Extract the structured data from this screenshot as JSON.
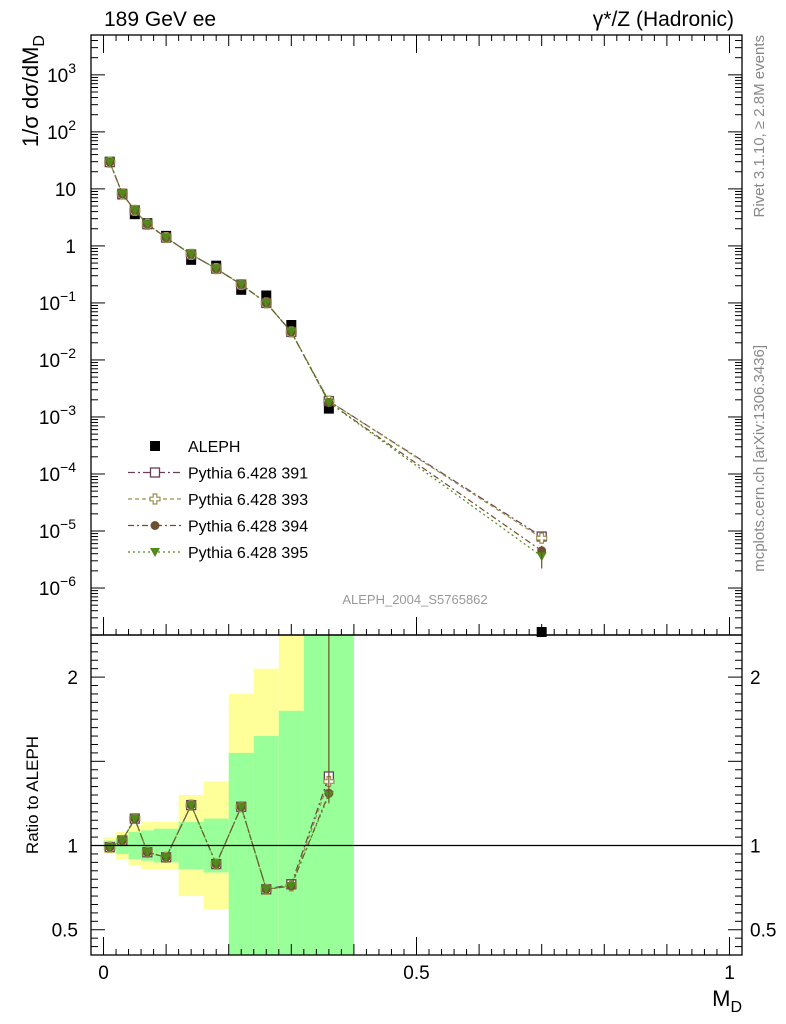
{
  "header": {
    "title_left": "189 GeV ee",
    "title_right": "γ*/Z (Hadronic)",
    "side_label_top": "Rivet 3.1.10, ≥ 2.8M events",
    "side_label_bottom": "mcplots.cern.ch [arXiv:1306.3436]",
    "analysis_id": "ALEPH_2004_S5765862"
  },
  "colors": {
    "data": "#000000",
    "p391": "#6b3f58",
    "p393": "#9a8f4a",
    "p394": "#6e5030",
    "p395": "#4f8a1a",
    "band_inner": "#99ff99",
    "band_outer": "#ffff99",
    "analysis_label": "#999999"
  },
  "chart_data": [
    {
      "type": "scatter",
      "panel": "main",
      "xlabel": "M_D",
      "ylabel": "1/σ  dσ/dM_D",
      "yscale": "log",
      "xlim": [
        -0.02,
        1.02
      ],
      "ylim": [
        1.5e-07,
        5000
      ],
      "y_ticks": [
        "10^-6",
        "10^-5",
        "10^-4",
        "10^-3",
        "10^-2",
        "10^-1",
        "1",
        "10",
        "10^2",
        "10^3"
      ],
      "legend_position": "lower-left",
      "x": [
        0.01,
        0.03,
        0.05,
        0.07,
        0.1,
        0.14,
        0.18,
        0.22,
        0.26,
        0.3,
        0.36,
        0.7
      ],
      "series": [
        {
          "name": "ALEPH",
          "marker": "square-filled",
          "color_key": "data",
          "values": [
            30,
            8.0,
            3.6,
            2.5,
            1.5,
            0.57,
            0.45,
            0.17,
            0.135,
            0.041,
            0.0014,
            1.2e-07
          ]
        },
        {
          "name": "Pythia 6.428 391",
          "marker": "square-open",
          "color_key": "p391",
          "dash": "7,3,2,3",
          "values": [
            29.5,
            8.2,
            4.2,
            2.4,
            1.4,
            0.71,
            0.4,
            0.21,
            0.1,
            0.031,
            0.0019,
            8e-06
          ]
        },
        {
          "name": "Pythia 6.428 393",
          "marker": "cross-open",
          "color_key": "p393",
          "dash": "4,3",
          "values": [
            29.5,
            8.2,
            4.2,
            2.4,
            1.4,
            0.71,
            0.4,
            0.21,
            0.1,
            0.031,
            0.0019,
            7.5e-06
          ]
        },
        {
          "name": "Pythia 6.428 394",
          "marker": "circle-filled",
          "color_key": "p394",
          "dash": "6,3,2,3",
          "values": [
            29.5,
            8.2,
            4.2,
            2.4,
            1.4,
            0.71,
            0.4,
            0.21,
            0.1,
            0.031,
            0.0018,
            4.5e-06
          ]
        },
        {
          "name": "Pythia 6.428 395",
          "marker": "triangle-down-filled",
          "color_key": "p395",
          "dash": "2,3",
          "values": [
            29.5,
            8.2,
            4.2,
            2.4,
            1.4,
            0.71,
            0.4,
            0.21,
            0.1,
            0.031,
            0.0018,
            3.6e-06
          ]
        }
      ]
    },
    {
      "type": "scatter",
      "panel": "ratio",
      "xlabel": "M_D",
      "ylabel": "Ratio to ALEPH",
      "xlim": [
        -0.02,
        1.02
      ],
      "ylim": [
        0.35,
        2.25
      ],
      "x_ticks": [
        "0",
        "0.5",
        "1"
      ],
      "y_ticks": [
        "0.5",
        "1",
        "2"
      ],
      "reference_line": 1,
      "uncertainty_bands": [
        {
          "x": [
            0.0,
            0.02
          ],
          "inner": [
            0.97,
            1.03
          ],
          "outer": [
            0.95,
            1.05
          ]
        },
        {
          "x": [
            0.02,
            0.04
          ],
          "inner": [
            0.95,
            1.05
          ],
          "outer": [
            0.92,
            1.08
          ]
        },
        {
          "x": [
            0.04,
            0.06
          ],
          "inner": [
            0.92,
            1.08
          ],
          "outer": [
            0.88,
            1.12
          ]
        },
        {
          "x": [
            0.06,
            0.08
          ],
          "inner": [
            0.91,
            1.09
          ],
          "outer": [
            0.86,
            1.14
          ]
        },
        {
          "x": [
            0.08,
            0.12
          ],
          "inner": [
            0.9,
            1.1
          ],
          "outer": [
            0.86,
            1.14
          ]
        },
        {
          "x": [
            0.12,
            0.16
          ],
          "inner": [
            0.86,
            1.14
          ],
          "outer": [
            0.7,
            1.3
          ]
        },
        {
          "x": [
            0.16,
            0.2
          ],
          "inner": [
            0.84,
            1.16
          ],
          "outer": [
            0.62,
            1.38
          ]
        },
        {
          "x": [
            0.2,
            0.24
          ],
          "inner": [
            0.35,
            1.55
          ],
          "outer": [
            0.35,
            1.9
          ]
        },
        {
          "x": [
            0.24,
            0.28
          ],
          "inner": [
            0.35,
            1.65
          ],
          "outer": [
            0.35,
            2.05
          ]
        },
        {
          "x": [
            0.28,
            0.32
          ],
          "inner": [
            0.35,
            1.8
          ],
          "outer": [
            0.35,
            2.25
          ]
        },
        {
          "x": [
            0.32,
            0.4
          ],
          "inner": [
            0.35,
            2.25
          ],
          "outer": [
            0.35,
            2.25
          ]
        }
      ],
      "x": [
        0.01,
        0.03,
        0.05,
        0.07,
        0.1,
        0.14,
        0.18,
        0.22,
        0.26,
        0.3,
        0.36
      ],
      "series": [
        {
          "name": "Pythia 6.428 391",
          "color_key": "p391",
          "marker": "square-open",
          "dash": "7,3,2,3",
          "values": [
            0.99,
            1.03,
            1.16,
            0.96,
            0.93,
            1.24,
            0.89,
            1.23,
            0.74,
            0.77,
            1.41
          ]
        },
        {
          "name": "Pythia 6.428 393",
          "color_key": "p393",
          "marker": "cross-open",
          "dash": "4,3",
          "values": [
            0.99,
            1.03,
            1.16,
            0.96,
            0.93,
            1.24,
            0.89,
            1.23,
            0.74,
            0.76,
            1.38
          ]
        },
        {
          "name": "Pythia 6.428 394",
          "color_key": "p394",
          "marker": "circle-filled",
          "dash": "6,3,2,3",
          "values": [
            0.99,
            1.03,
            1.16,
            0.96,
            0.93,
            1.24,
            0.89,
            1.23,
            0.74,
            0.76,
            1.31
          ]
        },
        {
          "name": "Pythia 6.428 395",
          "color_key": "p395",
          "marker": "triangle-down-filled",
          "dash": "2,3",
          "values": [
            0.99,
            1.03,
            1.16,
            0.96,
            0.93,
            1.24,
            0.89,
            1.23,
            0.74,
            0.76,
            1.3
          ]
        }
      ]
    }
  ]
}
